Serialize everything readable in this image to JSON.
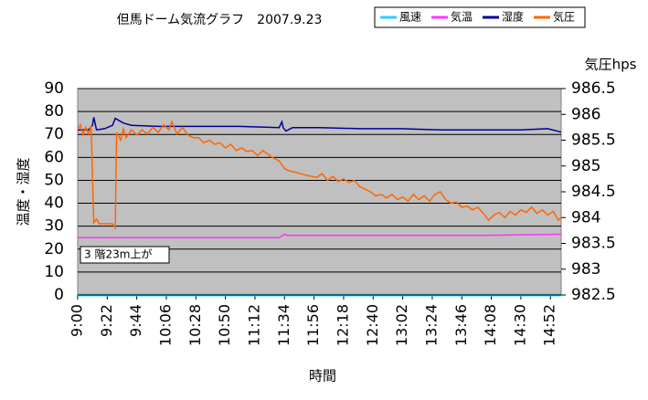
{
  "chart_data": {
    "type": "line",
    "title": "但馬ドーム気流グラフ　2007.9.23",
    "ylabel": "温度・湿度",
    "y2label": "気圧hps",
    "xlabel": "時間",
    "annotation": "3 階23m上が",
    "ylim": [
      0,
      90
    ],
    "yticks": [
      0,
      10,
      20,
      30,
      40,
      50,
      60,
      70,
      80,
      90
    ],
    "y2lim": [
      982.5,
      986.5
    ],
    "y2ticks": [
      982.5,
      983,
      983.5,
      984,
      984.5,
      985,
      985.5,
      986,
      986.5
    ],
    "xlim": [
      "9:00",
      "15:00"
    ],
    "xticks": [
      "9:00",
      "9:22",
      "9:44",
      "10:06",
      "10:28",
      "10:50",
      "11:12",
      "11:34",
      "11:56",
      "12:18",
      "12:40",
      "13:02",
      "13:24",
      "13:46",
      "14:08",
      "14:30",
      "14:52"
    ],
    "grid": true,
    "legend": "top-right",
    "series": [
      {
        "name": "風速",
        "color": "#33ccff",
        "x": [
          "9:00",
          "15:00"
        ],
        "values": [
          0,
          0
        ]
      },
      {
        "name": "気温",
        "color": "#ff33ff",
        "x": [
          "9:00",
          "11:30",
          "11:34",
          "11:36",
          "14:00",
          "15:00"
        ],
        "values": [
          25,
          25,
          26.5,
          26,
          26,
          26.5
        ]
      },
      {
        "name": "湿度",
        "color": "#000099",
        "x": [
          "9:00",
          "9:08",
          "9:11",
          "9:12",
          "9:14",
          "9:20",
          "9:26",
          "9:28",
          "9:34",
          "9:40",
          "10:00",
          "10:30",
          "11:00",
          "11:30",
          "11:32",
          "11:33",
          "11:35",
          "11:40",
          "12:00",
          "12:30",
          "13:00",
          "13:30",
          "14:00",
          "14:30",
          "14:50",
          "15:00"
        ],
        "values": [
          72,
          72,
          74,
          77.5,
          72,
          72.5,
          74,
          77,
          75,
          74,
          73.5,
          73.5,
          73.5,
          73,
          75.5,
          73,
          71.5,
          73,
          73,
          72.5,
          72.5,
          72,
          72,
          72,
          72.5,
          71
        ]
      },
      {
        "name": "気圧",
        "color": "#ff6600",
        "axis": "y2",
        "x": [
          "9:00",
          "9:02",
          "9:04",
          "9:06",
          "9:08",
          "9:10",
          "9:12",
          "9:14",
          "9:16",
          "9:20",
          "9:24",
          "9:26",
          "9:28",
          "9:29",
          "9:32",
          "9:34",
          "9:36",
          "9:40",
          "9:44",
          "9:48",
          "9:52",
          "9:56",
          "10:00",
          "10:04",
          "10:08",
          "10:10",
          "10:14",
          "10:18",
          "10:22",
          "10:26",
          "10:30",
          "10:34",
          "10:38",
          "10:42",
          "10:46",
          "10:50",
          "10:54",
          "10:58",
          "11:02",
          "11:06",
          "11:10",
          "11:14",
          "11:18",
          "11:22",
          "11:26",
          "11:30",
          "11:34",
          "11:38",
          "11:42",
          "11:46",
          "11:50",
          "11:54",
          "11:58",
          "12:02",
          "12:06",
          "12:10",
          "12:14",
          "12:18",
          "12:22",
          "12:26",
          "12:30",
          "12:34",
          "12:38",
          "12:42",
          "12:46",
          "12:50",
          "12:54",
          "12:58",
          "13:02",
          "13:06",
          "13:10",
          "13:14",
          "13:18",
          "13:22",
          "13:26",
          "13:30",
          "13:34",
          "13:38",
          "13:42",
          "13:46",
          "13:50",
          "13:54",
          "13:58",
          "14:02",
          "14:06",
          "14:10",
          "14:14",
          "14:18",
          "14:22",
          "14:26",
          "14:30",
          "14:34",
          "14:38",
          "14:42",
          "14:46",
          "14:50",
          "14:54",
          "14:58",
          "15:00"
        ],
        "values": [
          985.7,
          985.8,
          985.6,
          985.75,
          985.62,
          985.78,
          983.9,
          983.97,
          983.88,
          983.88,
          983.88,
          983.88,
          983.8,
          985.65,
          985.5,
          985.72,
          985.55,
          985.7,
          985.6,
          985.7,
          985.62,
          985.75,
          985.65,
          985.8,
          985.7,
          985.86,
          985.62,
          985.75,
          985.6,
          985.55,
          985.55,
          985.45,
          985.5,
          985.42,
          985.45,
          985.35,
          985.42,
          985.3,
          985.35,
          985.28,
          985.3,
          985.2,
          985.3,
          985.22,
          985.15,
          985.1,
          984.95,
          984.9,
          984.88,
          984.85,
          984.82,
          984.8,
          984.78,
          984.85,
          984.72,
          984.8,
          984.7,
          984.75,
          984.68,
          984.72,
          984.6,
          984.55,
          984.5,
          984.42,
          984.45,
          984.38,
          984.45,
          984.35,
          984.4,
          984.32,
          984.45,
          984.35,
          984.42,
          984.32,
          984.45,
          984.5,
          984.35,
          984.28,
          984.3,
          984.2,
          984.22,
          984.15,
          984.2,
          984.08,
          983.95,
          984.05,
          984.1,
          984.0,
          984.12,
          984.05,
          984.15,
          984.1,
          984.2,
          984.08,
          984.15,
          984.05,
          984.12,
          983.95,
          984.0
        ]
      }
    ]
  }
}
